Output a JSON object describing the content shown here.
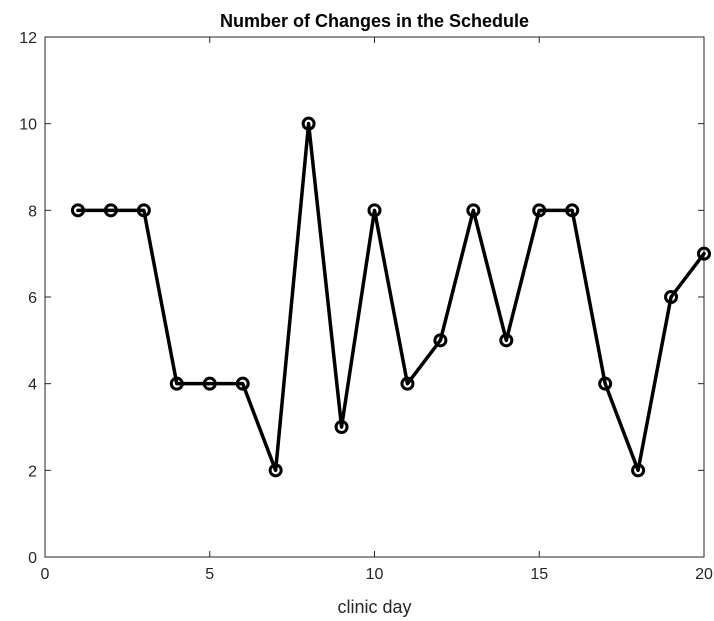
{
  "chart_data": {
    "type": "line",
    "title": "Number of Changes in the Schedule",
    "xlabel": "clinic day",
    "ylabel": "",
    "xlim": [
      0,
      20
    ],
    "ylim": [
      0,
      12
    ],
    "xticks": [
      0,
      5,
      10,
      15,
      20
    ],
    "yticks": [
      0,
      2,
      4,
      6,
      8,
      10,
      12
    ],
    "x": [
      1,
      2,
      3,
      4,
      5,
      6,
      7,
      8,
      9,
      10,
      11,
      12,
      13,
      14,
      15,
      16,
      17,
      18,
      19,
      20
    ],
    "series": [
      {
        "values": [
          8,
          8,
          8,
          4,
          4,
          4,
          2,
          10,
          3,
          8,
          4,
          5,
          8,
          5,
          8,
          8,
          4,
          2,
          6,
          7
        ],
        "color": "#000000",
        "marker": "circle"
      }
    ],
    "grid": false,
    "box": true
  }
}
